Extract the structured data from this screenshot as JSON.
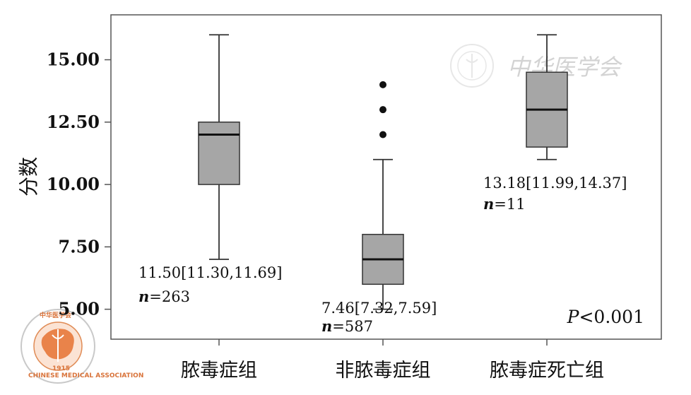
{
  "chart_data": {
    "type": "box",
    "ylabel": "分数",
    "ylim": [
      3.8,
      16.8
    ],
    "yticks": [
      {
        "value": 5.0,
        "label": "5.00"
      },
      {
        "value": 7.5,
        "label": "7.50"
      },
      {
        "value": 10.0,
        "label": "10.00"
      },
      {
        "value": 12.5,
        "label": "12.50"
      },
      {
        "value": 15.0,
        "label": "15.00"
      }
    ],
    "categories": [
      "脓毒症组",
      "非脓毒症组",
      "脓毒症死亡组"
    ],
    "boxes": [
      {
        "category": "脓毒症组",
        "min": 7.0,
        "q1": 10.0,
        "median": 12.0,
        "q3": 12.5,
        "max": 16.0,
        "outliers": [],
        "summary": "11.50[11.30,11.69]",
        "n_label": "n",
        "n_value": "=263"
      },
      {
        "category": "非脓毒症组",
        "min": 5.0,
        "q1": 6.0,
        "median": 7.0,
        "q3": 8.0,
        "max": 11.0,
        "outliers": [
          12.0,
          13.0,
          14.0
        ],
        "summary": "7.46[7.32,7.59]",
        "n_label": "n",
        "n_value": "=587"
      },
      {
        "category": "脓毒症死亡组",
        "min": 11.0,
        "q1": 11.5,
        "median": 13.0,
        "q3": 14.5,
        "max": 16.0,
        "outliers": [],
        "summary": "13.18[11.99,14.37]",
        "n_label": "n",
        "n_value": "=11"
      }
    ],
    "annotation": {
      "p_symbol": "P",
      "p_rest": "<0.001"
    },
    "colors": {
      "box_fill": "#a6a6a6",
      "line": "#333333",
      "axis": "#555555"
    },
    "grid": false
  },
  "watermark": {
    "text": "中华医学会",
    "logo_text_top": "中华医学会",
    "logo_text_bottom": "CHINESE MEDICAL ASSOCIATION",
    "logo_year": "1915"
  }
}
